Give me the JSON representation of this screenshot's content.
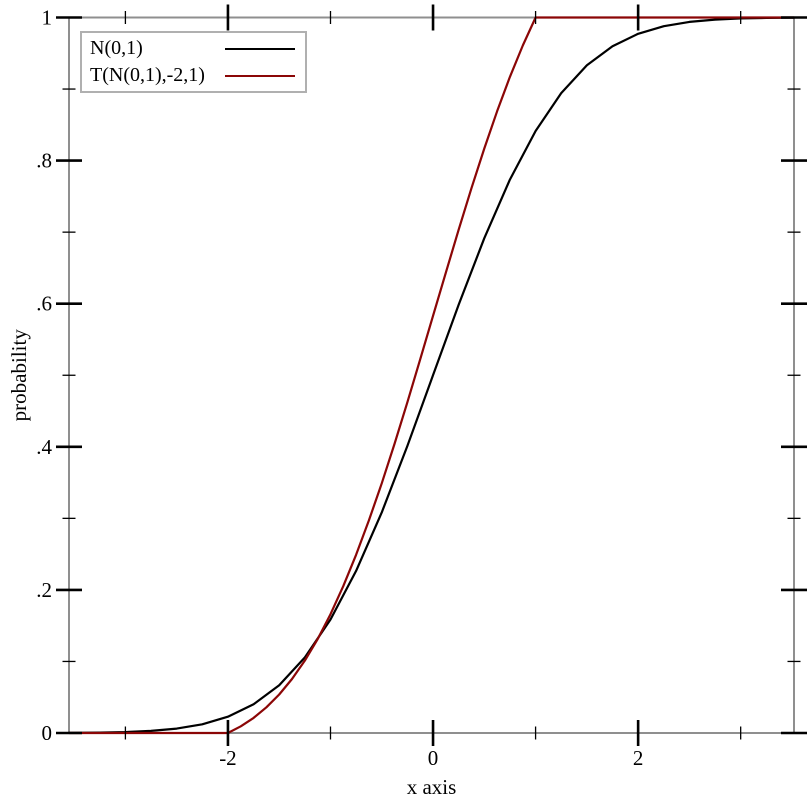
{
  "chart_data": {
    "type": "line",
    "title": "",
    "xlabel": "x axis",
    "ylabel": "probability",
    "xlim": [
      -3.55,
      3.52
    ],
    "ylim": [
      0,
      1
    ],
    "grid": false,
    "legend_position": "top-left",
    "x_major_ticks": [
      -2,
      0,
      2
    ],
    "x_major_labels": [
      "-2",
      "0",
      "2"
    ],
    "x_minor_ticks": [
      -3,
      -1,
      1,
      3
    ],
    "y_major_ticks": [
      0,
      0.2,
      0.4,
      0.6,
      0.8,
      1
    ],
    "y_major_labels": [
      "0",
      ".2",
      ".4",
      ".6",
      ".8",
      "1"
    ],
    "y_minor_ticks": [
      0.1,
      0.3,
      0.5,
      0.7,
      0.9
    ],
    "axis_color": "#8f8f8f",
    "tick_color": "#000000",
    "series": [
      {
        "name": "N(0,1)",
        "color": "#000000",
        "x": [
          -3.55,
          -3.25,
          -3,
          -2.75,
          -2.5,
          -2.25,
          -2,
          -1.75,
          -1.5,
          -1.25,
          -1,
          -0.75,
          -0.5,
          -0.25,
          0,
          0.25,
          0.5,
          0.75,
          1,
          1.25,
          1.5,
          1.75,
          2,
          2.25,
          2.5,
          2.75,
          3,
          3.25,
          3.52
        ],
        "y": [
          0.0002,
          0.0006,
          0.0013,
          0.003,
          0.0062,
          0.0122,
          0.0228,
          0.0401,
          0.0668,
          0.1056,
          0.1587,
          0.2266,
          0.3085,
          0.4013,
          0.5,
          0.5987,
          0.6915,
          0.7734,
          0.8413,
          0.8944,
          0.9332,
          0.9599,
          0.9772,
          0.9878,
          0.9938,
          0.997,
          0.9987,
          0.9994,
          0.9998
        ]
      },
      {
        "name": "T(N(0,1),-2,1)",
        "color": "#8b0606",
        "x": [
          -3.55,
          -2,
          -1.875,
          -1.75,
          -1.625,
          -1.5,
          -1.375,
          -1.25,
          -1.125,
          -1,
          -0.875,
          -0.75,
          -0.625,
          -0.5,
          -0.375,
          -0.25,
          -0.125,
          0,
          0.125,
          0.25,
          0.375,
          0.5,
          0.625,
          0.75,
          0.875,
          1,
          3.52
        ],
        "y": [
          0,
          0,
          0.0093,
          0.0211,
          0.0359,
          0.0538,
          0.0755,
          0.1013,
          0.1314,
          0.166,
          0.2053,
          0.2491,
          0.2971,
          0.3491,
          0.4045,
          0.4624,
          0.5223,
          0.583,
          0.6438,
          0.7036,
          0.7616,
          0.8169,
          0.8689,
          0.917,
          0.9608,
          1,
          1
        ]
      }
    ]
  },
  "legend": {
    "entries": [
      {
        "label": "N(0,1)"
      },
      {
        "label": "T(N(0,1),-2,1)"
      }
    ]
  }
}
